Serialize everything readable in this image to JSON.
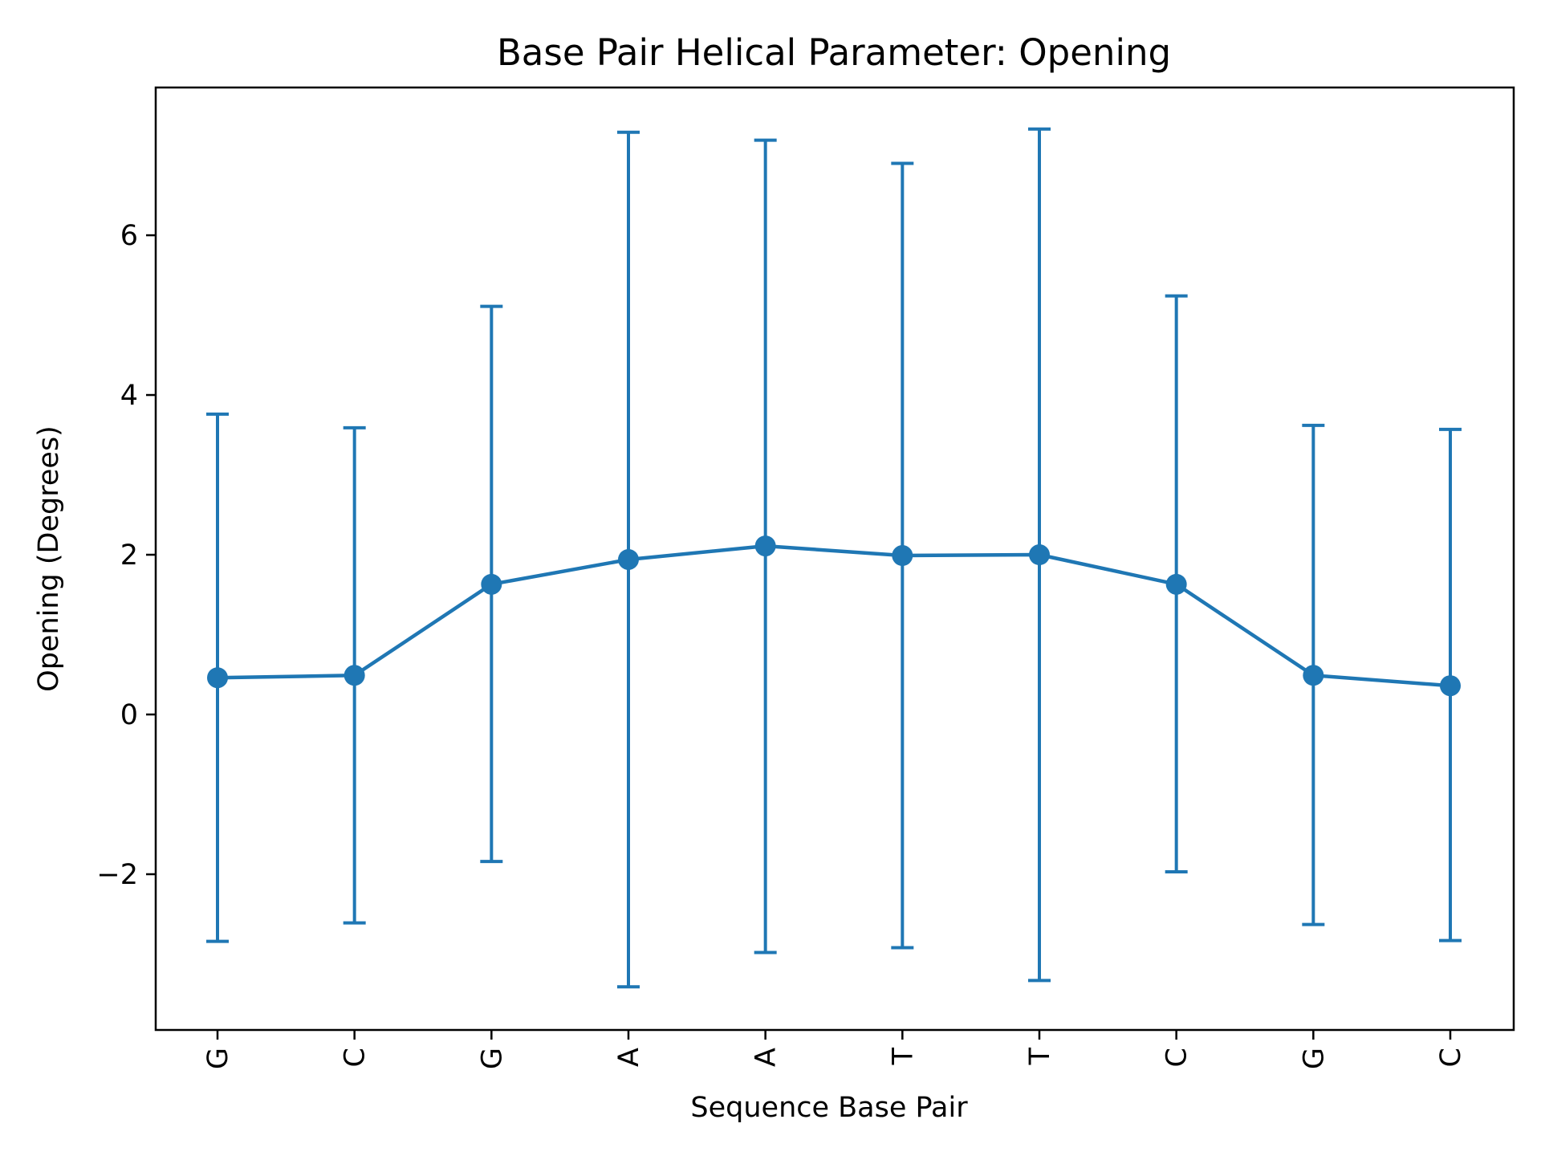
{
  "chart_data": {
    "type": "line",
    "title": "Base Pair  Helical Parameter: Opening",
    "xlabel": "Sequence Base Pair",
    "ylabel": "Opening (Degrees)",
    "categories": [
      "G",
      "C",
      "G",
      "A",
      "A",
      "T",
      "T",
      "C",
      "G",
      "C"
    ],
    "series": [
      {
        "values": [
          0.46,
          0.49,
          1.63,
          1.94,
          2.11,
          1.99,
          2.0,
          1.63,
          0.49,
          0.36
        ],
        "error_low": [
          -2.84,
          -2.61,
          -1.84,
          -3.41,
          -2.98,
          -2.92,
          -3.33,
          -1.97,
          -2.63,
          -2.83
        ],
        "error_high": [
          3.76,
          3.59,
          5.11,
          7.29,
          7.19,
          6.9,
          7.33,
          5.24,
          3.62,
          3.57
        ],
        "color": "#1f77b4",
        "marker": "circle"
      }
    ],
    "ylim": [
      -3.95,
      7.85
    ],
    "yticks": [
      -2,
      0,
      2,
      4,
      6
    ],
    "ytick_labels": [
      "−2",
      "0",
      "2",
      "4",
      "6"
    ],
    "x_tick_rotation": "vertical",
    "grid": false,
    "legend": "none"
  }
}
